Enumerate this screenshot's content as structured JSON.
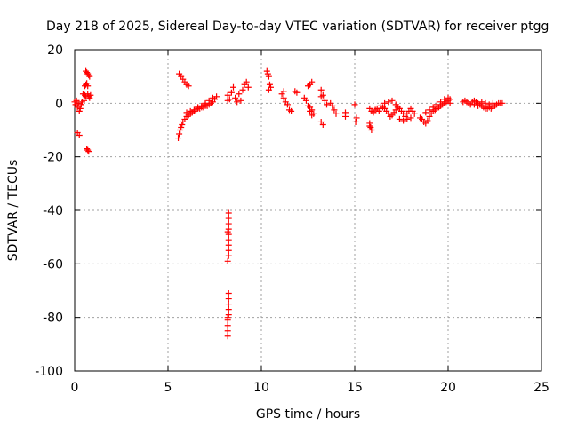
{
  "chart_data": {
    "type": "scatter",
    "title": "Day 218 of 2025, Sidereal Day-to-day VTEC variation (SDTVAR) for receiver ptgg",
    "xlabel": "GPS time / hours",
    "ylabel": "SDTVAR / TECUs",
    "xlim": [
      0,
      25
    ],
    "ylim": [
      -100,
      20
    ],
    "xticks": [
      0,
      5,
      10,
      15,
      20,
      25
    ],
    "yticks": [
      -100,
      -80,
      -60,
      -40,
      -20,
      0,
      20
    ],
    "grid": true,
    "marker": "+",
    "color": "#ff0000",
    "series": [
      {
        "name": "SDTVAR",
        "points": [
          [
            0.0,
            0.5
          ],
          [
            0.05,
            -0.5
          ],
          [
            0.1,
            1.0
          ],
          [
            0.15,
            -1.5
          ],
          [
            0.2,
            0.0
          ],
          [
            0.25,
            -3.0
          ],
          [
            0.3,
            -2.0
          ],
          [
            0.35,
            -0.5
          ],
          [
            0.4,
            0.5
          ],
          [
            0.45,
            3.5
          ],
          [
            0.5,
            1.0
          ],
          [
            0.55,
            3.0
          ],
          [
            0.6,
            2.5
          ],
          [
            0.15,
            -11.0
          ],
          [
            0.25,
            -12.0
          ],
          [
            0.55,
            6.5
          ],
          [
            0.6,
            7.0
          ],
          [
            0.65,
            7.5
          ],
          [
            0.7,
            6.5
          ],
          [
            0.6,
            12.0
          ],
          [
            0.65,
            11.5
          ],
          [
            0.7,
            11.0
          ],
          [
            0.75,
            10.5
          ],
          [
            0.8,
            10.0
          ],
          [
            0.65,
            -17.0
          ],
          [
            0.7,
            -17.5
          ],
          [
            0.75,
            -18.0
          ],
          [
            0.7,
            3.5
          ],
          [
            0.75,
            2.5
          ],
          [
            0.8,
            2.0
          ],
          [
            0.85,
            3.0
          ],
          [
            5.55,
            -13.0
          ],
          [
            5.6,
            -11.5
          ],
          [
            5.65,
            -10.0
          ],
          [
            5.7,
            -9.0
          ],
          [
            5.75,
            -8.0
          ],
          [
            5.8,
            -7.0
          ],
          [
            5.9,
            -6.0
          ],
          [
            6.0,
            -5.0
          ],
          [
            6.1,
            -4.5
          ],
          [
            6.2,
            -4.0
          ],
          [
            6.3,
            -3.5
          ],
          [
            6.4,
            -3.0
          ],
          [
            6.5,
            -2.5
          ],
          [
            6.6,
            -2.0
          ],
          [
            6.7,
            -2.0
          ],
          [
            6.8,
            -1.5
          ],
          [
            6.9,
            -1.5
          ],
          [
            7.0,
            -1.0
          ],
          [
            7.1,
            -1.0
          ],
          [
            7.2,
            -0.5
          ],
          [
            7.3,
            0.0
          ],
          [
            7.4,
            0.5
          ],
          [
            7.5,
            1.5
          ],
          [
            7.6,
            2.5
          ],
          [
            6.0,
            -3.5
          ],
          [
            6.2,
            -3.0
          ],
          [
            6.4,
            -2.5
          ],
          [
            6.6,
            -1.5
          ],
          [
            6.8,
            -1.0
          ],
          [
            7.0,
            -0.5
          ],
          [
            5.6,
            11.0
          ],
          [
            5.7,
            10.0
          ],
          [
            5.8,
            9.0
          ],
          [
            5.9,
            8.0
          ],
          [
            6.0,
            7.0
          ],
          [
            6.1,
            6.5
          ],
          [
            7.0,
            0.0
          ],
          [
            7.2,
            1.0
          ],
          [
            7.4,
            2.0
          ],
          [
            8.2,
            3.0
          ],
          [
            8.3,
            1.5
          ],
          [
            8.4,
            4.0
          ],
          [
            8.5,
            6.0
          ],
          [
            8.6,
            2.0
          ],
          [
            8.7,
            0.5
          ],
          [
            8.8,
            3.5
          ],
          [
            8.9,
            1.0
          ],
          [
            9.0,
            5.0
          ],
          [
            9.1,
            7.0
          ],
          [
            9.2,
            8.0
          ],
          [
            9.3,
            6.0
          ],
          [
            8.2,
            1.0
          ],
          [
            8.25,
            -41.0
          ],
          [
            8.25,
            -43.0
          ],
          [
            8.25,
            -45.0
          ],
          [
            8.25,
            -47.0
          ],
          [
            8.25,
            -49.0
          ],
          [
            8.25,
            -51.0
          ],
          [
            8.25,
            -53.0
          ],
          [
            8.25,
            -55.0
          ],
          [
            8.25,
            -57.0
          ],
          [
            8.2,
            -59.0
          ],
          [
            8.2,
            -48.0
          ],
          [
            8.25,
            -71.0
          ],
          [
            8.25,
            -73.0
          ],
          [
            8.25,
            -75.0
          ],
          [
            8.25,
            -77.0
          ],
          [
            8.25,
            -79.0
          ],
          [
            8.2,
            -81.0
          ],
          [
            8.2,
            -83.0
          ],
          [
            8.2,
            -85.0
          ],
          [
            8.2,
            -87.0
          ],
          [
            8.2,
            -80.0
          ],
          [
            10.3,
            12.0
          ],
          [
            10.35,
            11.0
          ],
          [
            10.4,
            10.0
          ],
          [
            10.45,
            7.0
          ],
          [
            10.5,
            6.0
          ],
          [
            10.4,
            5.0
          ],
          [
            11.1,
            3.5
          ],
          [
            11.2,
            2.0
          ],
          [
            11.3,
            0.5
          ],
          [
            11.4,
            -0.5
          ],
          [
            11.5,
            -2.5
          ],
          [
            11.6,
            -3.0
          ],
          [
            11.2,
            4.5
          ],
          [
            11.8,
            4.5
          ],
          [
            11.9,
            4.0
          ],
          [
            12.3,
            2.0
          ],
          [
            12.4,
            1.0
          ],
          [
            12.5,
            -1.0
          ],
          [
            12.6,
            -3.0
          ],
          [
            12.7,
            -4.5
          ],
          [
            12.5,
            6.5
          ],
          [
            12.6,
            7.0
          ],
          [
            12.7,
            8.0
          ],
          [
            12.6,
            -1.5
          ],
          [
            12.7,
            -2.5
          ],
          [
            12.8,
            -4.0
          ],
          [
            13.2,
            5.0
          ],
          [
            13.3,
            3.0
          ],
          [
            13.4,
            1.0
          ],
          [
            13.5,
            -0.5
          ],
          [
            13.2,
            2.5
          ],
          [
            13.2,
            -7.0
          ],
          [
            13.3,
            -8.0
          ],
          [
            13.7,
            0.0
          ],
          [
            13.8,
            -1.0
          ],
          [
            13.9,
            -2.5
          ],
          [
            14.0,
            -4.0
          ],
          [
            14.5,
            -3.5
          ],
          [
            14.5,
            -5.0
          ],
          [
            15.0,
            -0.5
          ],
          [
            15.1,
            -5.5
          ],
          [
            15.05,
            -7.0
          ],
          [
            15.8,
            -7.5
          ],
          [
            15.85,
            -9.0
          ],
          [
            15.9,
            -10.0
          ],
          [
            15.8,
            -8.5
          ],
          [
            15.8,
            -2.0
          ],
          [
            15.9,
            -3.0
          ],
          [
            16.0,
            -3.5
          ],
          [
            16.1,
            -2.5
          ],
          [
            16.2,
            -2.0
          ],
          [
            16.3,
            -3.0
          ],
          [
            16.4,
            -2.0
          ],
          [
            16.5,
            -1.5
          ],
          [
            16.6,
            -2.0
          ],
          [
            16.7,
            -3.0
          ],
          [
            16.8,
            -4.0
          ],
          [
            16.9,
            -5.0
          ],
          [
            17.0,
            -4.5
          ],
          [
            17.1,
            -3.5
          ],
          [
            17.2,
            -2.5
          ],
          [
            17.3,
            -1.5
          ],
          [
            17.4,
            -2.0
          ],
          [
            17.5,
            -3.0
          ],
          [
            17.6,
            -4.0
          ],
          [
            17.7,
            -5.0
          ],
          [
            17.8,
            -4.0
          ],
          [
            17.9,
            -3.0
          ],
          [
            18.0,
            -2.0
          ],
          [
            18.1,
            -3.0
          ],
          [
            18.2,
            -4.0
          ],
          [
            16.4,
            -1.0
          ],
          [
            16.6,
            0.0
          ],
          [
            16.8,
            0.5
          ],
          [
            17.0,
            1.0
          ],
          [
            17.2,
            -0.5
          ],
          [
            17.4,
            -6.0
          ],
          [
            17.6,
            -6.5
          ],
          [
            17.8,
            -6.0
          ],
          [
            18.0,
            -5.5
          ],
          [
            18.5,
            -5.5
          ],
          [
            18.6,
            -6.0
          ],
          [
            18.7,
            -7.0
          ],
          [
            18.8,
            -7.5
          ],
          [
            18.9,
            -6.5
          ],
          [
            19.0,
            -5.0
          ],
          [
            19.1,
            -4.0
          ],
          [
            19.2,
            -3.0
          ],
          [
            19.3,
            -2.5
          ],
          [
            19.4,
            -2.0
          ],
          [
            19.5,
            -1.5
          ],
          [
            19.6,
            -1.0
          ],
          [
            19.7,
            -0.5
          ],
          [
            19.8,
            0.0
          ],
          [
            19.9,
            0.5
          ],
          [
            20.0,
            1.0
          ],
          [
            20.1,
            1.5
          ],
          [
            18.8,
            -3.5
          ],
          [
            19.0,
            -2.5
          ],
          [
            19.2,
            -1.5
          ],
          [
            19.4,
            -0.5
          ],
          [
            19.6,
            0.5
          ],
          [
            19.8,
            1.5
          ],
          [
            20.0,
            2.0
          ],
          [
            20.1,
            0.0
          ],
          [
            20.8,
            0.5
          ],
          [
            20.9,
            1.0
          ],
          [
            21.0,
            0.5
          ],
          [
            21.1,
            0.0
          ],
          [
            21.2,
            -0.5
          ],
          [
            21.3,
            0.5
          ],
          [
            21.4,
            1.0
          ],
          [
            21.5,
            0.5
          ],
          [
            21.6,
            0.0
          ],
          [
            21.7,
            -0.5
          ],
          [
            21.8,
            -1.0
          ],
          [
            21.9,
            -1.5
          ],
          [
            22.0,
            -2.0
          ],
          [
            22.1,
            -2.0
          ],
          [
            22.2,
            -1.5
          ],
          [
            22.3,
            -2.0
          ],
          [
            22.4,
            -1.5
          ],
          [
            22.5,
            -1.0
          ],
          [
            22.6,
            -0.5
          ],
          [
            22.7,
            0.0
          ],
          [
            22.8,
            0.0
          ],
          [
            22.9,
            0.0
          ],
          [
            21.4,
            -0.5
          ],
          [
            21.6,
            -1.0
          ],
          [
            21.8,
            0.5
          ],
          [
            22.0,
            0.0
          ],
          [
            22.2,
            -0.5
          ],
          [
            22.4,
            0.0
          ]
        ]
      }
    ]
  }
}
